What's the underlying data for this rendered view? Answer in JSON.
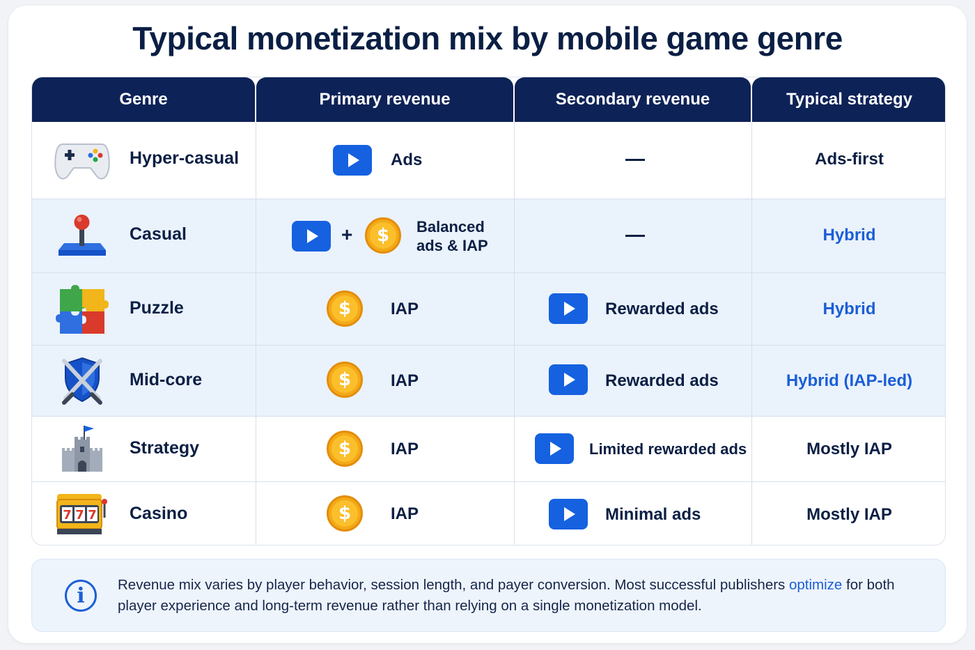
{
  "title": "Typical monetization mix by mobile game genre",
  "headers": [
    "Genre",
    "Primary revenue",
    "Secondary revenue",
    "Typical strategy"
  ],
  "rows": [
    {
      "genre": "Hyper-casual",
      "icon": "gamepad-icon",
      "primary": "Ads",
      "primary_icon": "play-icon",
      "secondary": "—",
      "strategy": "Ads-first",
      "strategy_color": "#0b1f44"
    },
    {
      "genre": "Casual",
      "icon": "joystick-icon",
      "primary_line1": "Balanced",
      "primary_line2": "ads & IAP",
      "primary_icon": "play-plus-coin",
      "plus": "+",
      "secondary": "—",
      "strategy": "Hybrid",
      "strategy_color": "#1a5fd6"
    },
    {
      "genre": "Puzzle",
      "icon": "puzzle-icon",
      "primary": "IAP",
      "primary_icon": "coin-icon",
      "secondary": "Rewarded ads",
      "strategy": "Hybrid",
      "strategy_color": "#1a5fd6"
    },
    {
      "genre": "Mid-core",
      "icon": "shield-swords-icon",
      "primary": "IAP",
      "primary_icon": "coin-icon",
      "secondary": "Rewarded ads",
      "strategy": "Hybrid (IAP-led)",
      "strategy_color": "#1a5fd6"
    },
    {
      "genre": "Strategy",
      "icon": "castle-icon",
      "primary": "IAP",
      "primary_icon": "coin-icon",
      "secondary": "Limited rewarded ads",
      "strategy": "Mostly IAP",
      "strategy_color": "#0b1f44"
    },
    {
      "genre": "Casino",
      "icon": "slot-machine-icon",
      "primary": "IAP",
      "primary_icon": "coin-icon",
      "secondary": "Minimal ads",
      "strategy": "Mostly IAP",
      "strategy_color": "#0b1f44"
    }
  ],
  "coin_symbol": "$",
  "info": {
    "icon": "i",
    "text_before": "Revenue mix varies by player behavior, session length, and payer conversion. Most successful publishers ",
    "highlight": "optimize",
    "text_after": " for both player experience and long-term revenue rather than relying on a single monetization model."
  }
}
